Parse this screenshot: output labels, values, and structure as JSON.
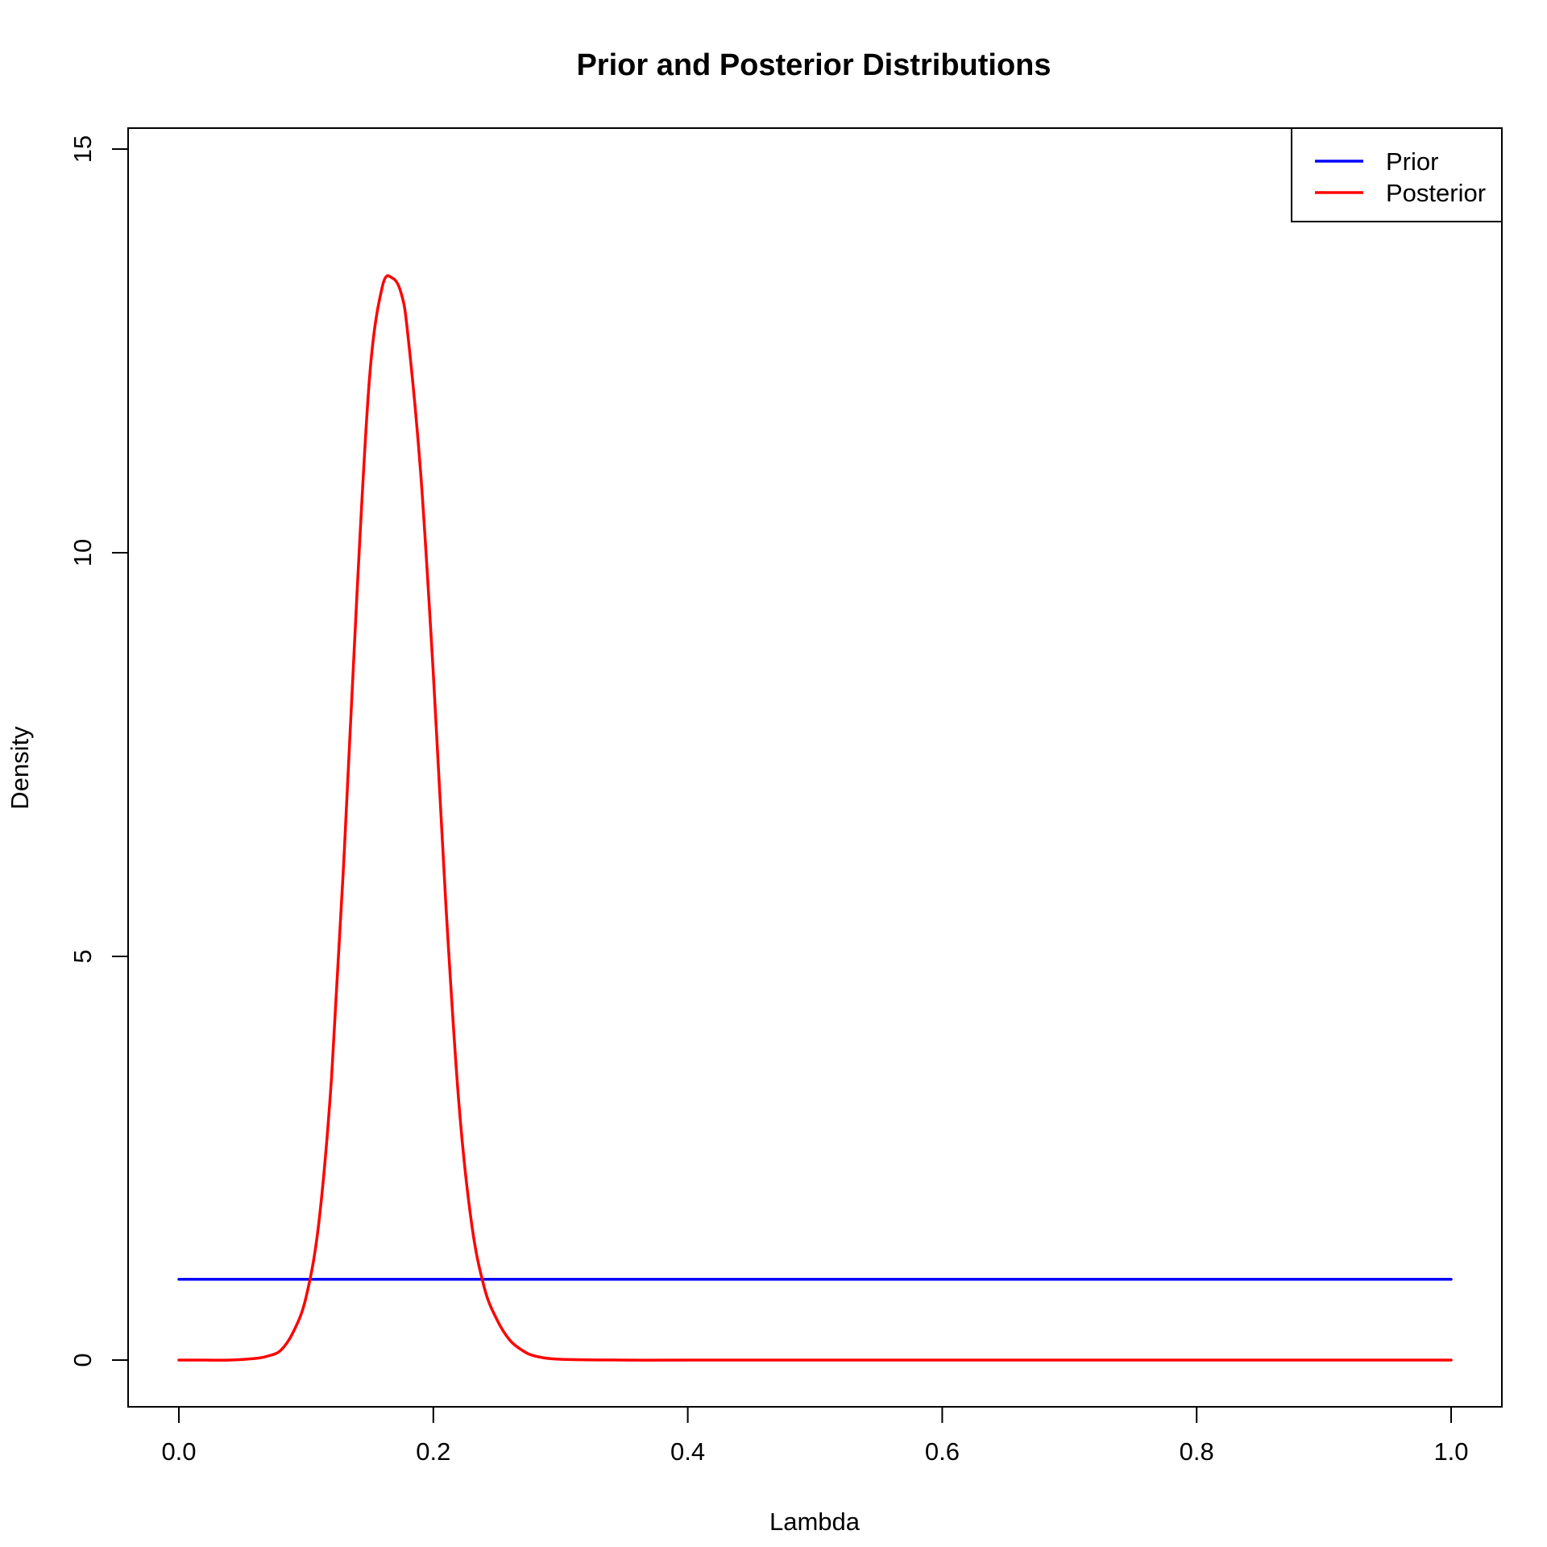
{
  "chart_data": {
    "type": "line",
    "title": "Prior and Posterior Distributions",
    "xlabel": "Lambda",
    "ylabel": "Density",
    "xlim": [
      -0.04,
      1.04
    ],
    "ylim": [
      -0.6,
      15.3
    ],
    "x_ticks": [
      0.0,
      0.2,
      0.4,
      0.6,
      0.8,
      1.0
    ],
    "x_tick_labels": [
      "0.0",
      "0.2",
      "0.4",
      "0.6",
      "0.8",
      "1.0"
    ],
    "y_ticks": [
      0,
      5,
      10,
      15
    ],
    "y_tick_labels": [
      "0",
      "5",
      "10",
      "15"
    ],
    "grid": false,
    "legend_position": "top-right",
    "series": [
      {
        "name": "Prior",
        "color": "#0000ff",
        "x": [
          0.0,
          1.0
        ],
        "y": [
          1.0,
          1.0
        ]
      },
      {
        "name": "Posterior",
        "color": "#ff0000",
        "x": [
          0.0,
          0.02,
          0.04,
          0.06,
          0.07,
          0.08,
          0.09,
          0.1,
          0.11,
          0.12,
          0.13,
          0.14,
          0.15,
          0.16,
          0.168,
          0.175,
          0.18,
          0.19,
          0.2,
          0.21,
          0.22,
          0.23,
          0.24,
          0.25,
          0.26,
          0.27,
          0.28,
          0.3,
          0.35,
          0.4,
          0.5,
          0.6,
          0.7,
          0.8,
          0.9,
          1.0
        ],
        "y": [
          0.0,
          0.0,
          0.0,
          0.02,
          0.05,
          0.12,
          0.35,
          0.78,
          1.7,
          3.5,
          6.3,
          9.5,
          12.2,
          13.3,
          13.4,
          13.2,
          12.7,
          11.0,
          8.5,
          5.6,
          3.2,
          1.7,
          0.9,
          0.5,
          0.25,
          0.12,
          0.05,
          0.01,
          0.0,
          0.0,
          0.0,
          0.0,
          0.0,
          0.0,
          0.0,
          0.0
        ]
      }
    ]
  }
}
